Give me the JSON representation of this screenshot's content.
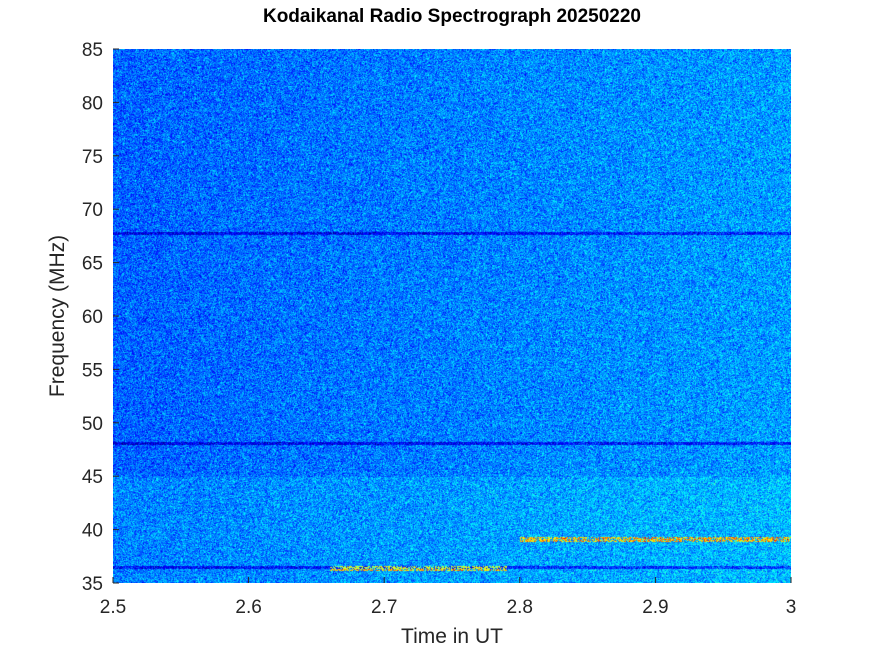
{
  "chart_data": {
    "type": "heatmap",
    "title": "Kodaikanal Radio Spectrograph  20250220",
    "xlabel": "Time in UT",
    "ylabel": "Frequency (MHz)",
    "xlim": [
      2.5,
      3
    ],
    "ylim": [
      35,
      85
    ],
    "xticks": [
      2.5,
      2.6,
      2.7,
      2.8,
      2.9,
      3
    ],
    "xtick_labels": [
      "2.5",
      "2.6",
      "2.7",
      "2.8",
      "2.9",
      "3"
    ],
    "yticks": [
      35,
      40,
      45,
      50,
      55,
      60,
      65,
      70,
      75,
      80,
      85
    ],
    "ytick_labels": [
      "35",
      "40",
      "45",
      "50",
      "55",
      "60",
      "65",
      "70",
      "75",
      "80",
      "85"
    ],
    "grid": false,
    "colormap": "jet",
    "colors": {
      "background": "#1a3fd6",
      "low": "#00008f",
      "mid": "#0060ff",
      "high": "#40f0ff",
      "peak": "#c8ff40"
    },
    "features": [
      {
        "type": "dark-line",
        "frequency_mhz": 67.8
      },
      {
        "type": "dark-line",
        "frequency_mhz": 48.1
      },
      {
        "type": "bright-band",
        "frequency_mhz": 39.1,
        "time_start": 2.8,
        "time_end": 3.0
      },
      {
        "type": "bright-band",
        "frequency_mhz": 36.4,
        "time_start": 2.66,
        "time_end": 2.79
      },
      {
        "type": "dark-line",
        "frequency_mhz": 36.5
      }
    ]
  }
}
